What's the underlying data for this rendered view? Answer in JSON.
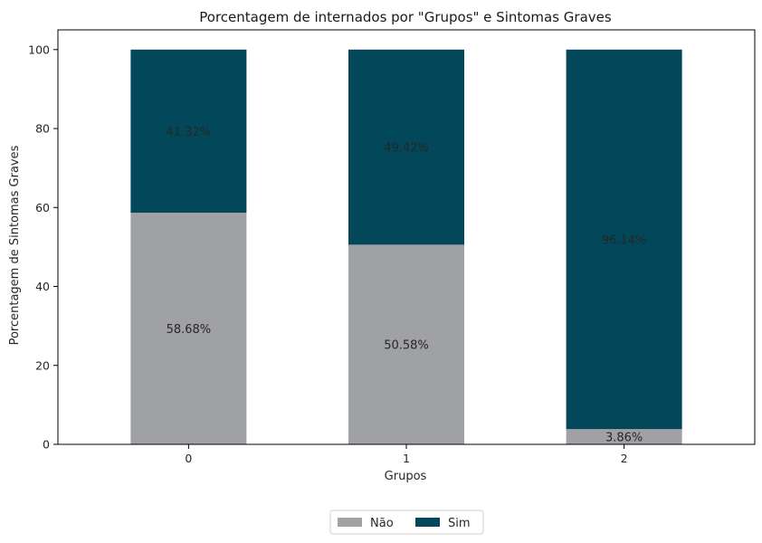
{
  "chart_data": {
    "type": "bar",
    "stacked": true,
    "title": "Porcentagem de internados por \"Grupos\" e Sintomas Graves",
    "xlabel": "Grupos",
    "ylabel": "Porcentagem de Sintomas Graves",
    "categories": [
      "0",
      "1",
      "2"
    ],
    "ylim": [
      0,
      105
    ],
    "yticks": [
      0,
      20,
      40,
      60,
      80,
      100
    ],
    "grid": false,
    "legend_position": "bottom-center",
    "series": [
      {
        "name": "Não",
        "color": "#a0a1a4",
        "values": [
          58.68,
          50.58,
          3.86
        ],
        "labels": [
          "58.68%",
          "50.58%",
          "3.86%"
        ]
      },
      {
        "name": "Sim",
        "color": "#03485a",
        "values": [
          41.32,
          49.42,
          96.14
        ],
        "labels": [
          "41.32%",
          "49.42%",
          "96.14%"
        ]
      }
    ]
  }
}
